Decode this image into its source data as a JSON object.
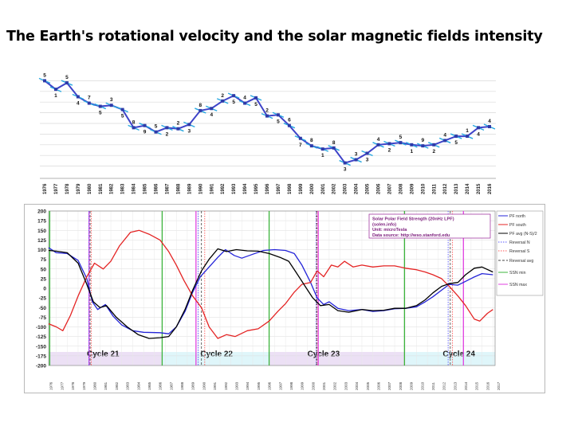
{
  "slide": {
    "title": "The Earth's rotational velocity and the solar magnetic fields intensity"
  },
  "chart_data": [
    {
      "type": "line",
      "title": "",
      "xlabel": "",
      "ylabel": "",
      "x": [
        "1976",
        "1977",
        "1978",
        "1979",
        "1980",
        "1981",
        "1982",
        "1983",
        "1984",
        "1985",
        "1986",
        "1987",
        "1988",
        "1989",
        "1990",
        "1991",
        "1992",
        "1993",
        "1994",
        "1995",
        "1996",
        "1997",
        "1998",
        "1999",
        "2000",
        "2001",
        "2002",
        "2003",
        "2004",
        "2005",
        "2006",
        "2007",
        "2008",
        "2009",
        "2010",
        "2011",
        "2012",
        "2013",
        "2014",
        "2015",
        "2016"
      ],
      "series": [
        {
          "name": "",
          "values": [
            9.0,
            8.2,
            8.8,
            7.5,
            6.9,
            6.6,
            6.7,
            6.3,
            4.6,
            4.8,
            4.2,
            4.6,
            4.5,
            4.9,
            6.2,
            6.4,
            7.1,
            7.6,
            6.9,
            7.4,
            5.7,
            5.8,
            4.8,
            3.6,
            2.9,
            2.6,
            2.7,
            1.3,
            1.6,
            2.2,
            3.0,
            3.1,
            3.2,
            3.0,
            2.9,
            3.0,
            3.4,
            3.8,
            3.8,
            4.6,
            4.7
          ],
          "labels": [
            "5",
            "1",
            "5",
            "4",
            "7",
            "5",
            "3",
            "5",
            "8",
            "9",
            "5",
            "2",
            "2",
            "3",
            "8",
            "4",
            "2",
            "5",
            "4",
            "5",
            "2",
            "5",
            "6",
            "7",
            "8",
            "1",
            "8",
            "3",
            "3",
            "3",
            "4",
            "2",
            "5",
            "1",
            "9",
            "2",
            "4",
            "5",
            "1",
            "4",
            "4"
          ],
          "color": "#3e43c8"
        }
      ],
      "marker_color": "#29a8e0",
      "grid": "horizontal",
      "ylim": [
        0,
        10
      ]
    },
    {
      "type": "line",
      "title": "",
      "x_ticks": [
        "1976",
        "1977",
        "1978",
        "1979",
        "1980",
        "1981",
        "1982",
        "1983",
        "1984",
        "1985",
        "1986",
        "1987",
        "1988",
        "1989",
        "1990",
        "1991",
        "1992",
        "1993",
        "1994",
        "1995",
        "1996",
        "1997",
        "1998",
        "1999",
        "2000",
        "2001",
        "2002",
        "2003",
        "2004",
        "2005",
        "2006",
        "2007",
        "2008",
        "2009",
        "2010",
        "2011",
        "2012",
        "2013",
        "2014",
        "2015",
        "2016",
        "2017"
      ],
      "ylim": [
        -200,
        200
      ],
      "yticks": [
        200,
        175,
        150,
        125,
        100,
        75,
        50,
        25,
        0,
        -25,
        -50,
        -75,
        -100,
        -125,
        -150,
        -175,
        -200
      ],
      "x_range": [
        1976.3,
        2017.2
      ],
      "info_box": [
        "Solar Polar Field Strength (20nHz LPF)",
        "(solen.info)",
        "Unit: microTesla",
        "Data source: http://wso.stanford.edu"
      ],
      "legend": [
        "PF north",
        "PF south",
        "PF avg (N-S)/2",
        "Reversal N",
        "Reversal S",
        "Reversal avg",
        "SSN min",
        "SSN max"
      ],
      "cycles": [
        {
          "label": "Cycle 21",
          "start": 1976.3,
          "end": 1986.7,
          "color": "#ece0f5"
        },
        {
          "label": "Cycle 22",
          "start": 1986.7,
          "end": 1996.5,
          "color": "#dff6fa"
        },
        {
          "label": "Cycle 23",
          "start": 1996.5,
          "end": 2008.9,
          "color": "#ece0f5"
        },
        {
          "label": "Cycle 24",
          "start": 2008.9,
          "end": 2017.2,
          "color": "#dff6fa"
        }
      ],
      "ssn_min": [
        1976.4,
        1986.7,
        1996.5,
        2008.9
      ],
      "ssn_max": [
        1980.0,
        1989.8,
        2001.0,
        2014.3
      ],
      "reversal_north": [
        1980.0,
        1990.0,
        2000.8,
        2012.9
      ],
      "reversal_south": [
        1980.2,
        1990.6,
        2000.9,
        2013.3
      ],
      "reversal_avg": [
        1980.1,
        1990.3,
        2000.85,
        2013.1
      ],
      "series": [
        {
          "name": "PF north",
          "color": "#2424d8",
          "points": [
            [
              1976.3,
              105
            ],
            [
              1977,
              92
            ],
            [
              1978,
              90
            ],
            [
              1979,
              72
            ],
            [
              1979.8,
              25
            ],
            [
              1980.3,
              -35
            ],
            [
              1980.8,
              -55
            ],
            [
              1981.5,
              -42
            ],
            [
              1982.2,
              -72
            ],
            [
              1983,
              -95
            ],
            [
              1984,
              -110
            ],
            [
              1985,
              -114
            ],
            [
              1986.5,
              -115
            ],
            [
              1987.3,
              -118
            ],
            [
              1988,
              -100
            ],
            [
              1988.8,
              -60
            ],
            [
              1989.5,
              -10
            ],
            [
              1990.2,
              30
            ],
            [
              1991,
              55
            ],
            [
              1991.8,
              80
            ],
            [
              1992.5,
              100
            ],
            [
              1993.3,
              85
            ],
            [
              1994,
              78
            ],
            [
              1995,
              88
            ],
            [
              1996,
              98
            ],
            [
              1997,
              100
            ],
            [
              1998,
              98
            ],
            [
              1998.8,
              90
            ],
            [
              1999.5,
              60
            ],
            [
              2000.3,
              15
            ],
            [
              2000.9,
              -25
            ],
            [
              2001.5,
              -42
            ],
            [
              2002,
              -35
            ],
            [
              2002.8,
              -52
            ],
            [
              2003.8,
              -58
            ],
            [
              2005,
              -55
            ],
            [
              2006,
              -60
            ],
            [
              2007,
              -58
            ],
            [
              2008,
              -53
            ],
            [
              2009,
              -52
            ],
            [
              2010,
              -48
            ],
            [
              2010.8,
              -35
            ],
            [
              2011.5,
              -22
            ],
            [
              2012.3,
              -5
            ],
            [
              2013,
              10
            ],
            [
              2013.8,
              8
            ],
            [
              2014.5,
              18
            ],
            [
              2015.2,
              28
            ],
            [
              2016,
              38
            ],
            [
              2017,
              35
            ]
          ]
        },
        {
          "name": "PF south",
          "color": "#e42424",
          "points": [
            [
              1976.3,
              -92
            ],
            [
              1977,
              -100
            ],
            [
              1977.6,
              -110
            ],
            [
              1978.3,
              -70
            ],
            [
              1979,
              -20
            ],
            [
              1979.8,
              30
            ],
            [
              1980.5,
              65
            ],
            [
              1981.3,
              50
            ],
            [
              1982,
              70
            ],
            [
              1982.8,
              110
            ],
            [
              1983.8,
              145
            ],
            [
              1984.6,
              150
            ],
            [
              1985.5,
              140
            ],
            [
              1986.5,
              125
            ],
            [
              1987.3,
              95
            ],
            [
              1988,
              60
            ],
            [
              1988.7,
              20
            ],
            [
              1989.5,
              -20
            ],
            [
              1990.3,
              -50
            ],
            [
              1991,
              -100
            ],
            [
              1991.8,
              -130
            ],
            [
              1992.6,
              -120
            ],
            [
              1993.4,
              -125
            ],
            [
              1994.5,
              -110
            ],
            [
              1995.5,
              -105
            ],
            [
              1996.5,
              -85
            ],
            [
              1997.3,
              -60
            ],
            [
              1998,
              -40
            ],
            [
              1998.8,
              -10
            ],
            [
              1999.5,
              10
            ],
            [
              2000.3,
              15
            ],
            [
              2000.9,
              45
            ],
            [
              2001.5,
              30
            ],
            [
              2002.2,
              60
            ],
            [
              2002.8,
              55
            ],
            [
              2003.4,
              70
            ],
            [
              2004.2,
              55
            ],
            [
              2005,
              60
            ],
            [
              2006,
              55
            ],
            [
              2007,
              58
            ],
            [
              2008,
              58
            ],
            [
              2009,
              52
            ],
            [
              2010,
              48
            ],
            [
              2010.8,
              42
            ],
            [
              2011.5,
              35
            ],
            [
              2012.3,
              25
            ],
            [
              2013,
              5
            ],
            [
              2013.8,
              -20
            ],
            [
              2014.5,
              -45
            ],
            [
              2015.3,
              -80
            ],
            [
              2015.8,
              -85
            ],
            [
              2016.5,
              -65
            ],
            [
              2017,
              -55
            ]
          ]
        },
        {
          "name": "PF avg (N-S)/2",
          "color": "#000000",
          "points": [
            [
              1976.3,
              98
            ],
            [
              1977,
              96
            ],
            [
              1978,
              92
            ],
            [
              1979,
              65
            ],
            [
              1979.8,
              10
            ],
            [
              1980.4,
              -35
            ],
            [
              1981,
              -50
            ],
            [
              1981.6,
              -45
            ],
            [
              1982.5,
              -75
            ],
            [
              1983.5,
              -100
            ],
            [
              1984.5,
              -120
            ],
            [
              1985.5,
              -130
            ],
            [
              1986.5,
              -128
            ],
            [
              1987.3,
              -125
            ],
            [
              1988,
              -100
            ],
            [
              1988.8,
              -55
            ],
            [
              1989.5,
              -5
            ],
            [
              1990.3,
              45
            ],
            [
              1991,
              75
            ],
            [
              1991.8,
              102
            ],
            [
              1992.6,
              95
            ],
            [
              1993.5,
              100
            ],
            [
              1994.5,
              97
            ],
            [
              1995.5,
              96
            ],
            [
              1996.5,
              90
            ],
            [
              1997.5,
              80
            ],
            [
              1998.3,
              70
            ],
            [
              1999,
              40
            ],
            [
              1999.8,
              5
            ],
            [
              2000.5,
              -25
            ],
            [
              2001.2,
              -45
            ],
            [
              2002,
              -42
            ],
            [
              2002.8,
              -58
            ],
            [
              2003.8,
              -62
            ],
            [
              2005,
              -55
            ],
            [
              2006,
              -58
            ],
            [
              2007,
              -57
            ],
            [
              2008,
              -52
            ],
            [
              2009,
              -52
            ],
            [
              2010,
              -45
            ],
            [
              2010.8,
              -30
            ],
            [
              2011.5,
              -12
            ],
            [
              2012.3,
              5
            ],
            [
              2013,
              12
            ],
            [
              2013.8,
              15
            ],
            [
              2014.5,
              35
            ],
            [
              2015.3,
              52
            ],
            [
              2016,
              55
            ],
            [
              2017,
              42
            ]
          ]
        }
      ]
    }
  ]
}
